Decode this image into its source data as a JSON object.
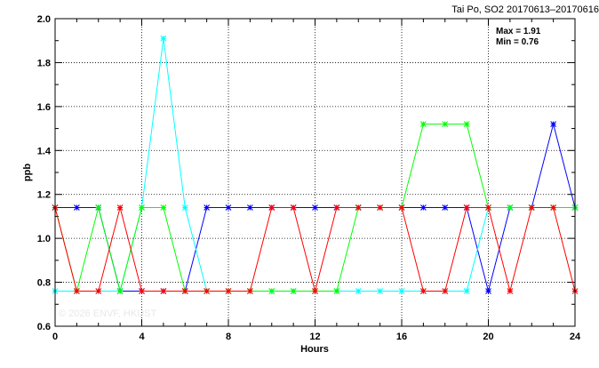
{
  "chart_data": {
    "type": "line",
    "title": "Tai Po, SO2 20170613–20170616",
    "xlabel": "Hours",
    "ylabel": "ppb",
    "xlim": [
      0,
      24
    ],
    "ylim": [
      0.6,
      2.0
    ],
    "xticks": [
      0,
      4,
      8,
      12,
      16,
      20,
      24
    ],
    "xtick_labels": [
      "0",
      "4",
      "8",
      "12",
      "16",
      "20",
      "24"
    ],
    "yticks": [
      0.6,
      0.8,
      1.0,
      1.2,
      1.4,
      1.6,
      1.8,
      2.0
    ],
    "ytick_labels": [
      "0.6",
      "0.8",
      "1.0",
      "1.2",
      "1.4",
      "1.6",
      "1.8",
      "2.0"
    ],
    "grid": "dotted",
    "x": [
      0,
      1,
      2,
      3,
      4,
      5,
      6,
      7,
      8,
      9,
      10,
      11,
      12,
      13,
      14,
      15,
      16,
      17,
      18,
      19,
      20,
      21,
      22,
      23,
      24
    ],
    "series": [
      {
        "color": "#0000ff",
        "values": [
          1.14,
          1.14,
          1.14,
          0.76,
          0.76,
          0.76,
          0.76,
          1.14,
          1.14,
          1.14,
          1.14,
          1.14,
          1.14,
          1.14,
          1.14,
          1.14,
          1.14,
          1.14,
          1.14,
          1.14,
          0.76,
          1.14,
          1.14,
          1.52,
          1.14
        ]
      },
      {
        "color": "#00ffff",
        "values": [
          0.76,
          0.76,
          0.76,
          0.76,
          1.14,
          1.91,
          1.14,
          0.76,
          0.76,
          0.76,
          0.76,
          0.76,
          0.76,
          0.76,
          0.76,
          0.76,
          0.76,
          0.76,
          0.76,
          0.76,
          1.14,
          1.14,
          1.14,
          1.14,
          1.14
        ]
      },
      {
        "color": "#00ff00",
        "values": [
          1.14,
          0.76,
          1.14,
          0.76,
          1.14,
          1.14,
          0.76,
          0.76,
          0.76,
          0.76,
          0.76,
          0.76,
          0.76,
          0.76,
          1.14,
          1.14,
          1.14,
          1.52,
          1.52,
          1.52,
          1.14,
          1.14,
          1.14,
          1.14,
          1.14
        ]
      },
      {
        "color": "#ff0000",
        "values": [
          1.14,
          0.76,
          0.76,
          1.14,
          0.76,
          0.76,
          0.76,
          0.76,
          0.76,
          0.76,
          1.14,
          1.14,
          0.76,
          1.14,
          1.14,
          1.14,
          1.14,
          0.76,
          0.76,
          1.14,
          1.14,
          0.76,
          1.14,
          1.14,
          0.76
        ]
      }
    ],
    "annotations": {
      "max_label": "Max = 1.91",
      "min_label": "Min = 0.76"
    },
    "watermark": "© 2026  ENVF, HKUST"
  }
}
